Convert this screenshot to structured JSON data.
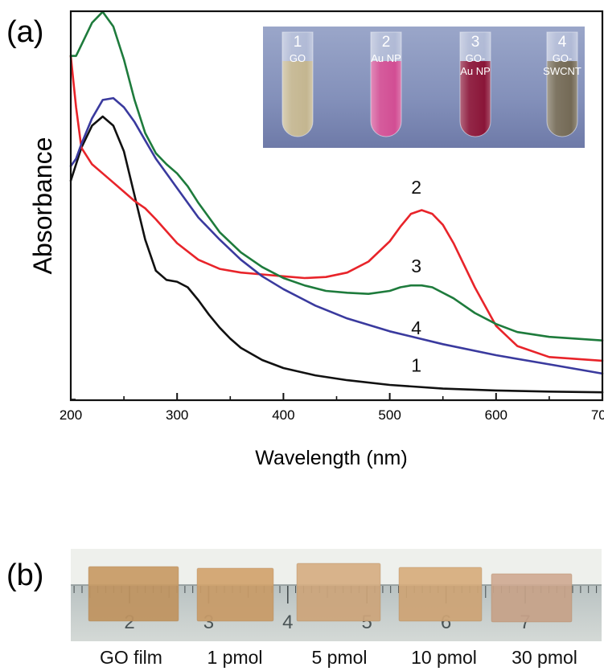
{
  "panel_a": {
    "label": "(a)",
    "chart_data": {
      "type": "line",
      "xlabel": "Wavelength (nm)",
      "ylabel": "Absorbance",
      "xlim": [
        200,
        700
      ],
      "ylim": [
        0,
        1.0
      ],
      "y_ticks_labeled": false,
      "xticks": [
        200,
        300,
        400,
        500,
        600,
        700
      ],
      "xtick_labels": [
        "200",
        "300",
        "400",
        "500",
        "600",
        "700"
      ],
      "grid": false,
      "legend": "none",
      "series": [
        {
          "name": "1",
          "color": "#111111",
          "x": [
            200,
            210,
            220,
            230,
            240,
            250,
            260,
            270,
            280,
            290,
            300,
            310,
            320,
            330,
            340,
            350,
            360,
            380,
            400,
            430,
            460,
            500,
            550,
            600,
            650,
            700
          ],
          "y": [
            0.58,
            0.67,
            0.73,
            0.755,
            0.73,
            0.66,
            0.54,
            0.42,
            0.335,
            0.31,
            0.305,
            0.29,
            0.255,
            0.215,
            0.18,
            0.15,
            0.125,
            0.092,
            0.07,
            0.05,
            0.037,
            0.024,
            0.014,
            0.009,
            0.006,
            0.004
          ],
          "end_label": "1"
        },
        {
          "name": "2",
          "color": "#e8242a",
          "x": [
            200,
            205,
            210,
            220,
            230,
            240,
            250,
            260,
            270,
            280,
            300,
            320,
            340,
            360,
            380,
            400,
            420,
            440,
            460,
            480,
            500,
            510,
            520,
            530,
            540,
            550,
            560,
            580,
            600,
            620,
            650,
            700
          ],
          "y": [
            0.92,
            0.78,
            0.67,
            0.625,
            0.6,
            0.575,
            0.55,
            0.525,
            0.505,
            0.475,
            0.41,
            0.365,
            0.34,
            0.33,
            0.325,
            0.32,
            0.315,
            0.318,
            0.33,
            0.36,
            0.415,
            0.455,
            0.49,
            0.5,
            0.49,
            0.46,
            0.41,
            0.29,
            0.185,
            0.13,
            0.1,
            0.09
          ],
          "end_label": "2"
        },
        {
          "name": "3",
          "color": "#1e7b3c",
          "x": [
            200,
            205,
            210,
            220,
            230,
            240,
            250,
            260,
            270,
            280,
            290,
            300,
            310,
            320,
            340,
            360,
            380,
            400,
            420,
            440,
            460,
            480,
            500,
            510,
            520,
            530,
            540,
            560,
            580,
            600,
            620,
            650,
            700
          ],
          "y": [
            0.92,
            0.92,
            0.95,
            1.01,
            1.04,
            1.0,
            0.91,
            0.8,
            0.71,
            0.655,
            0.625,
            0.6,
            0.565,
            0.52,
            0.44,
            0.385,
            0.345,
            0.315,
            0.295,
            0.28,
            0.275,
            0.272,
            0.28,
            0.29,
            0.295,
            0.295,
            0.29,
            0.26,
            0.22,
            0.19,
            0.168,
            0.155,
            0.145
          ],
          "end_label": "3"
        },
        {
          "name": "4",
          "color": "#3a3a9e",
          "x": [
            200,
            205,
            210,
            220,
            230,
            240,
            250,
            260,
            270,
            280,
            290,
            300,
            310,
            320,
            340,
            360,
            380,
            400,
            430,
            460,
            500,
            550,
            600,
            650,
            700
          ],
          "y": [
            0.62,
            0.64,
            0.68,
            0.75,
            0.8,
            0.805,
            0.78,
            0.74,
            0.69,
            0.64,
            0.6,
            0.56,
            0.52,
            0.48,
            0.42,
            0.365,
            0.32,
            0.285,
            0.24,
            0.205,
            0.17,
            0.135,
            0.105,
            0.08,
            0.055
          ],
          "end_label": "4"
        }
      ],
      "annotations": [
        {
          "text": "2",
          "x": 525,
          "y": 0.545,
          "color": "#111111"
        },
        {
          "text": "3",
          "x": 525,
          "y": 0.33,
          "color": "#111111"
        },
        {
          "text": "4",
          "x": 525,
          "y": 0.162,
          "color": "#111111"
        },
        {
          "text": "1",
          "x": 525,
          "y": 0.06,
          "color": "#111111"
        }
      ]
    },
    "inset": {
      "tubes": [
        {
          "number": "1",
          "caption": [
            "GO"
          ],
          "liquid": "#c4b690"
        },
        {
          "number": "2",
          "caption": [
            "Au NP"
          ],
          "liquid": "#d24e94"
        },
        {
          "number": "3",
          "caption": [
            "GO-",
            "Au NP"
          ],
          "liquid": "#8a1538"
        },
        {
          "number": "4",
          "caption": [
            "GO-",
            "SWCNT"
          ],
          "liquid": "#746a56"
        }
      ]
    }
  },
  "panel_b": {
    "label": "(b)",
    "ruler_numbers": [
      "2",
      "3",
      "4",
      "5",
      "6",
      "7"
    ],
    "films": [
      {
        "caption": "GO film",
        "color": "#c89a64"
      },
      {
        "caption": "1 pmol",
        "color": "#d1a36c"
      },
      {
        "caption": "5 pmol",
        "color": "#d6ae82"
      },
      {
        "caption": "10 pmol",
        "color": "#d7ad7c"
      },
      {
        "caption": "30 pmol",
        "color": "#cfaa92"
      }
    ]
  }
}
